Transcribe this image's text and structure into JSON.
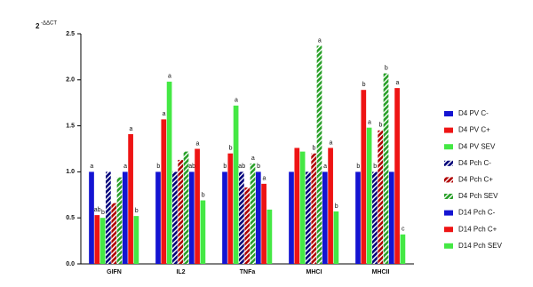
{
  "chart_data": {
    "type": "bar",
    "ylabel": "2",
    "ylabel_sup": "-ΔΔCT",
    "categories": [
      "GIFN",
      "IL2",
      "TNFa",
      "MHCI",
      "MHCII"
    ],
    "ylim": [
      0,
      2.5
    ],
    "yticks": [
      {
        "value": 0,
        "label": "0.0"
      },
      {
        "value": 0.5,
        "label": "0.5"
      },
      {
        "value": 1,
        "label": "1.0"
      },
      {
        "value": 1.5,
        "label": "1.5"
      },
      {
        "value": 2,
        "label": "2.0"
      },
      {
        "value": 2.5,
        "label": "2.5"
      }
    ],
    "legend": "right",
    "series": [
      {
        "name": "D4 PV C-",
        "color": "#1414d2",
        "hatch": false,
        "values": [
          1.0,
          1.0,
          1.0,
          1.0,
          1.0
        ],
        "letters": [
          "a",
          "b",
          "b",
          null,
          "b"
        ]
      },
      {
        "name": "D4 PV C+",
        "color": "#ee1414",
        "hatch": false,
        "values": [
          0.53,
          1.57,
          1.2,
          1.26,
          1.89
        ],
        "letters": [
          "ab",
          "a",
          "b",
          null,
          "b"
        ]
      },
      {
        "name": "D4 PV SEV",
        "color": "#44e844",
        "hatch": false,
        "values": [
          0.5,
          1.98,
          1.72,
          1.22,
          1.48
        ],
        "letters": [
          "b",
          "a",
          "a",
          null,
          "a"
        ]
      },
      {
        "name": "D4 Pch C-",
        "color": "#00007a",
        "hatch": true,
        "values": [
          1.0,
          1.0,
          1.0,
          1.0,
          1.0
        ],
        "letters": [
          null,
          null,
          "ab",
          null,
          "b"
        ]
      },
      {
        "name": "D4 Pch C+",
        "color": "#b00000",
        "hatch": true,
        "values": [
          0.66,
          1.13,
          0.83,
          1.2,
          1.45
        ],
        "letters": [
          null,
          null,
          null,
          "b",
          "b"
        ]
      },
      {
        "name": "D4 Pch SEV",
        "color": "#28a028",
        "hatch": true,
        "values": [
          0.94,
          1.22,
          1.09,
          2.37,
          2.07
        ],
        "letters": [
          null,
          null,
          "a",
          "a",
          "b"
        ]
      },
      {
        "name": "D14 Pch C-",
        "color": "#1414d2",
        "hatch": false,
        "values": [
          1.0,
          1.0,
          1.0,
          1.0,
          1.0
        ],
        "letters": [
          "a",
          "ab",
          "b",
          "a",
          null
        ]
      },
      {
        "name": "D14 Pch C+",
        "color": "#ee1414",
        "hatch": false,
        "values": [
          1.41,
          1.25,
          0.87,
          1.26,
          1.91
        ],
        "letters": [
          "a",
          "a",
          "a",
          "a",
          "a"
        ]
      },
      {
        "name": "D14 Pch SEV",
        "color": "#44e844",
        "hatch": false,
        "values": [
          0.52,
          0.69,
          0.59,
          0.57,
          0.32
        ],
        "letters": [
          "b",
          "b",
          null,
          "b",
          "c"
        ]
      }
    ]
  }
}
